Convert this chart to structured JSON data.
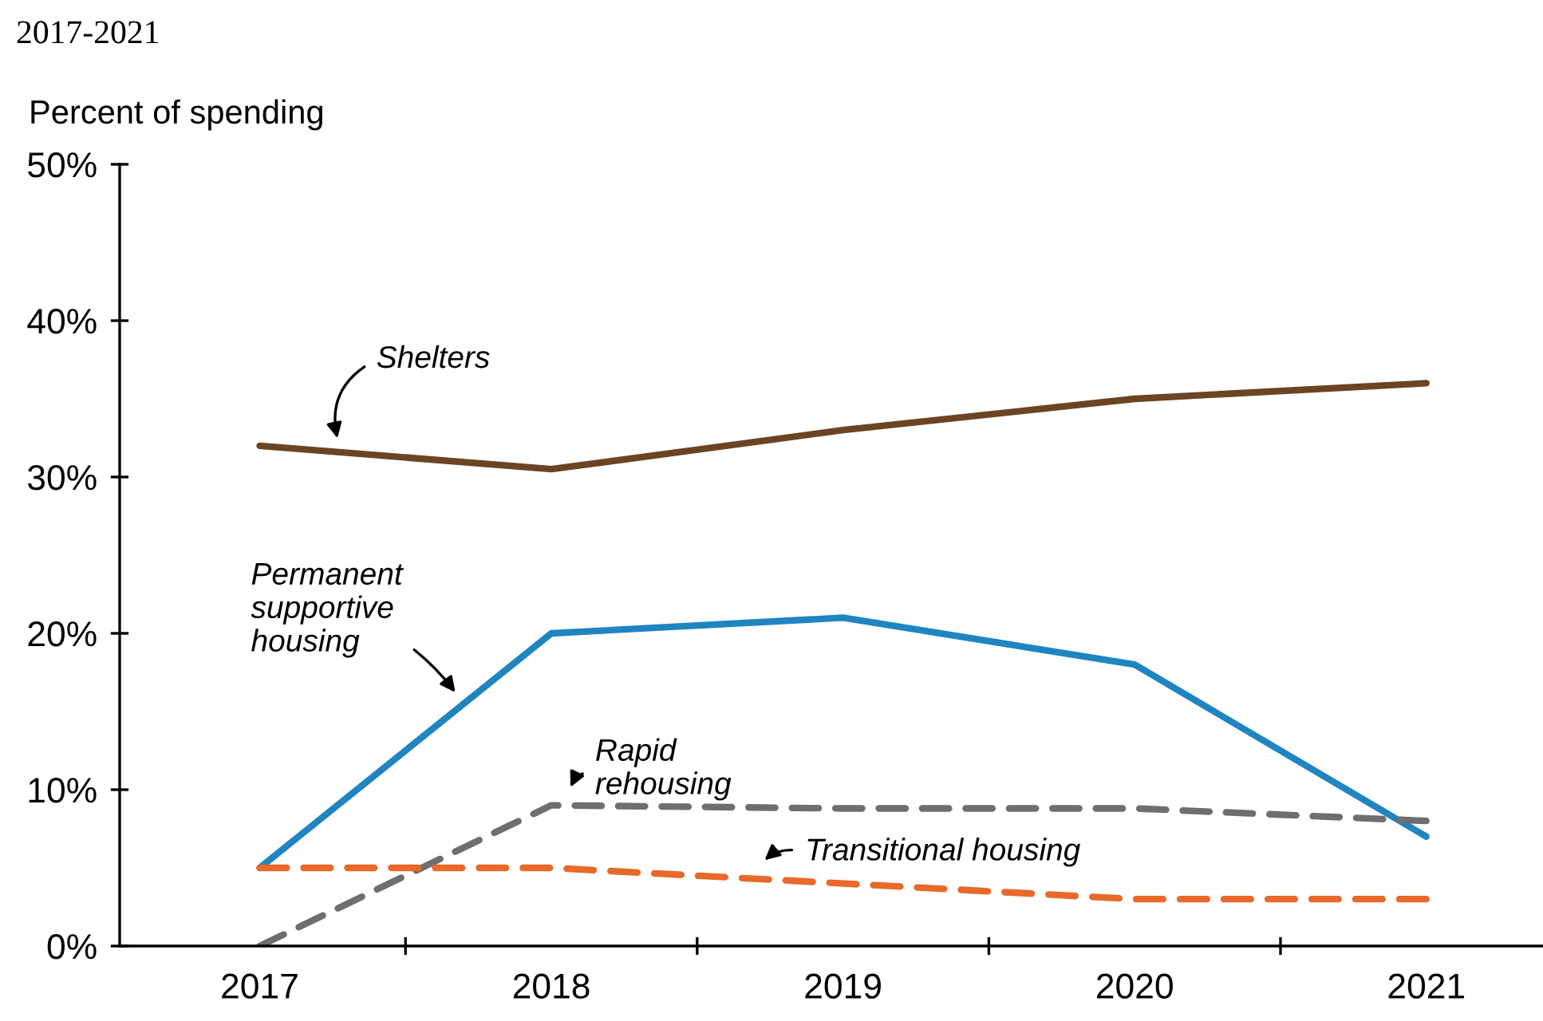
{
  "chart_data": {
    "type": "line",
    "title": "2017-2021",
    "ylabel": "Percent of spending",
    "categories": [
      "2017",
      "2018",
      "2019",
      "2020",
      "2021"
    ],
    "ylim": [
      0,
      50
    ],
    "yticks": [
      {
        "value": 0,
        "label": "0%"
      },
      {
        "value": 10,
        "label": "10%"
      },
      {
        "value": 20,
        "label": "20%"
      },
      {
        "value": 30,
        "label": "30%"
      },
      {
        "value": 40,
        "label": "40%"
      },
      {
        "value": 50,
        "label": "50%"
      }
    ],
    "grid": false,
    "legend": false,
    "marker": "none",
    "series": [
      {
        "name": "Shelters",
        "color": "#6b4423",
        "line_style": "solid",
        "values": [
          32,
          30.5,
          33,
          35,
          36
        ]
      },
      {
        "name": "Permanent\nsupportive\nhousing",
        "color": "#1f85c1",
        "line_style": "solid",
        "values": [
          5,
          20,
          21,
          18,
          7
        ]
      },
      {
        "name": "Rapid\nrehousing",
        "color": "#6e6e6e",
        "line_style": "dashed",
        "values": [
          0,
          9,
          8.8,
          8.8,
          8
        ]
      },
      {
        "name": "Transitional housing",
        "color": "#e8692a",
        "line_style": "dashed",
        "values": [
          5,
          5,
          4,
          3,
          3
        ]
      }
    ]
  }
}
